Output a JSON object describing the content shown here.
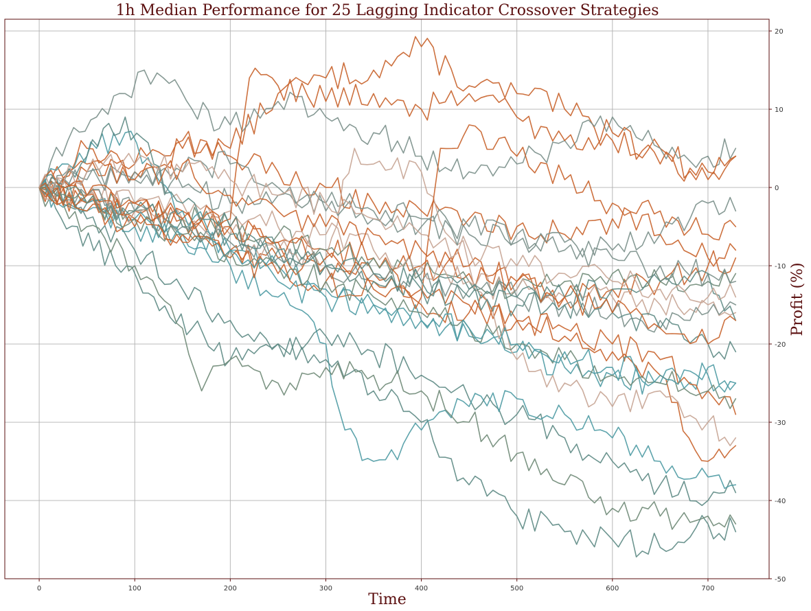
{
  "chart_data": {
    "type": "line",
    "title": "1h Median Performance for 25 Lagging Indicator Crossover Strategies",
    "xlabel": "Time",
    "ylabel": "Profit (%)",
    "xlim": [
      -36,
      764
    ],
    "ylim": [
      -50,
      21.5
    ],
    "xticks": [
      0,
      100,
      200,
      300,
      400,
      500,
      600,
      700
    ],
    "yticks": [
      -50,
      -40,
      -30,
      -20,
      -10,
      0,
      10,
      20
    ],
    "y_axis_side": "right",
    "grid": true,
    "legend": "none",
    "colors": [
      "#c8622a",
      "#5d8a84",
      "#4c9aa3",
      "#7a8f8a",
      "#c7a493",
      "#6f8a77"
    ],
    "series": [
      {
        "color": "#c8622a",
        "x": [
          0,
          50,
          100,
          150,
          200,
          250,
          300,
          350,
          400,
          450,
          500,
          550,
          600,
          650,
          700,
          729
        ],
        "y": [
          0,
          5,
          3,
          6,
          5,
          12,
          14,
          15,
          18,
          13,
          12,
          10,
          6,
          5,
          1,
          4
        ]
      },
      {
        "color": "#7a8f8a",
        "x": [
          0,
          30,
          60,
          90,
          110,
          130,
          160,
          200,
          250,
          300,
          350,
          400,
          450,
          500,
          550,
          600,
          650,
          700,
          729
        ],
        "y": [
          0,
          6,
          9,
          12,
          15,
          14,
          10,
          8,
          11,
          9,
          7,
          4,
          2,
          3,
          6,
          9,
          5,
          4,
          5
        ]
      },
      {
        "color": "#c8622a",
        "x": [
          0,
          50,
          100,
          150,
          200,
          250,
          300,
          350,
          400,
          450,
          500,
          550,
          600,
          650,
          700,
          729
        ],
        "y": [
          0,
          3,
          2,
          5,
          4,
          2,
          0,
          -2,
          -3,
          -4,
          -5,
          -6,
          -4,
          -3,
          -6,
          -5
        ]
      },
      {
        "color": "#7a8f8a",
        "x": [
          0,
          50,
          100,
          150,
          200,
          250,
          300,
          350,
          400,
          450,
          500,
          550,
          600,
          650,
          700,
          729
        ],
        "y": [
          0,
          2,
          1,
          2,
          3,
          0,
          -2,
          -3,
          -4,
          -5,
          -6,
          -7,
          -8,
          -6,
          -2,
          -3
        ]
      },
      {
        "color": "#c8622a",
        "x": [
          0,
          50,
          100,
          150,
          200,
          250,
          300,
          350,
          400,
          450,
          500,
          550,
          600,
          650,
          700,
          729
        ],
        "y": [
          0,
          -1,
          -3,
          -4,
          -5,
          -7,
          -8,
          -9,
          -10,
          -11,
          -12,
          -14,
          -13,
          -12,
          -10,
          -9
        ]
      },
      {
        "color": "#6f8a77",
        "x": [
          0,
          50,
          100,
          150,
          200,
          250,
          300,
          350,
          400,
          450,
          500,
          550,
          600,
          650,
          700,
          729
        ],
        "y": [
          0,
          -2,
          -3,
          -4,
          -5,
          -6,
          -8,
          -9,
          -11,
          -12,
          -13,
          -12,
          -11,
          -12,
          -12,
          -11
        ]
      },
      {
        "color": "#c7a493",
        "x": [
          0,
          50,
          100,
          150,
          200,
          250,
          300,
          350,
          400,
          450,
          500,
          550,
          600,
          650,
          700,
          729
        ],
        "y": [
          0,
          -1,
          -2,
          -2,
          -3,
          -5,
          -6,
          -8,
          -10,
          -12,
          -13,
          -14,
          -14,
          -15,
          -15,
          -16
        ]
      },
      {
        "color": "#4c9aa3",
        "x": [
          0,
          50,
          100,
          150,
          200,
          250,
          300,
          350,
          400,
          450,
          500,
          550,
          600,
          650,
          700,
          729
        ],
        "y": [
          0,
          -2,
          -4,
          -6,
          -8,
          -10,
          -13,
          -15,
          -17,
          -19,
          -21,
          -23,
          -24,
          -25,
          -24,
          -25
        ]
      },
      {
        "color": "#5d8a84",
        "x": [
          0,
          40,
          80,
          120,
          160,
          200,
          250,
          300,
          350,
          400,
          450,
          500,
          550,
          600,
          650,
          700,
          729
        ],
        "y": [
          0,
          -5,
          -10,
          -14,
          -18,
          -22,
          -20,
          -19,
          -21,
          -24,
          -27,
          -29,
          -32,
          -35,
          -38,
          -40,
          -39
        ]
      },
      {
        "color": "#4c9aa3",
        "x": [
          0,
          50,
          100,
          150,
          200,
          250,
          300,
          320,
          350,
          400,
          450,
          500,
          550,
          600,
          650,
          700,
          729
        ],
        "y": [
          0,
          -3,
          -5,
          -7,
          -10,
          -14,
          -20,
          -31,
          -35,
          -31,
          -28,
          -27,
          -29,
          -32,
          -35,
          -37,
          -38
        ]
      },
      {
        "color": "#5d8a84",
        "x": [
          0,
          50,
          100,
          150,
          200,
          250,
          300,
          350,
          400,
          450,
          500,
          550,
          600,
          650,
          700,
          729
        ],
        "y": [
          0,
          -4,
          -8,
          -13,
          -17,
          -20,
          -22,
          -26,
          -30,
          -38,
          -42,
          -44,
          -45,
          -46,
          -43,
          -44
        ]
      },
      {
        "color": "#6f8a77",
        "x": [
          0,
          50,
          100,
          150,
          170,
          200,
          250,
          300,
          350,
          400,
          450,
          500,
          550,
          600,
          650,
          700,
          729
        ],
        "y": [
          0,
          -5,
          -10,
          -18,
          -26,
          -22,
          -25,
          -23,
          -24,
          -26,
          -30,
          -34,
          -38,
          -41,
          -42,
          -42,
          -43
        ]
      },
      {
        "color": "#c8622a",
        "x": [
          0,
          50,
          100,
          150,
          200,
          250,
          300,
          350,
          400,
          450,
          500,
          550,
          600,
          650,
          680,
          700,
          729
        ],
        "y": [
          0,
          -2,
          -4,
          -6,
          -8,
          -9,
          -10,
          -11,
          -13,
          -15,
          -17,
          -19,
          -21,
          -24,
          -32,
          -35,
          -33
        ]
      },
      {
        "color": "#c7a493",
        "x": [
          0,
          50,
          100,
          150,
          200,
          250,
          300,
          330,
          350,
          400,
          450,
          500,
          550,
          600,
          650,
          700,
          729
        ],
        "y": [
          0,
          -1,
          -3,
          -4,
          -6,
          -8,
          -9,
          5,
          3,
          2,
          -10,
          -22,
          -25,
          -28,
          -26,
          -30,
          -32
        ]
      },
      {
        "color": "#c8622a",
        "x": [
          0,
          50,
          100,
          150,
          200,
          250,
          300,
          350,
          400,
          420,
          450,
          500,
          550,
          600,
          650,
          700,
          729
        ],
        "y": [
          0,
          -1,
          -2,
          -3,
          -5,
          -7,
          -9,
          -12,
          -14,
          5,
          8,
          4,
          1,
          -2,
          -6,
          -9,
          -8
        ]
      },
      {
        "color": "#7a8f8a",
        "x": [
          0,
          50,
          100,
          150,
          200,
          250,
          300,
          350,
          400,
          450,
          500,
          550,
          600,
          650,
          700,
          729
        ],
        "y": [
          0,
          -1,
          -3,
          -5,
          -7,
          -9,
          -10,
          -11,
          -12,
          -13,
          -14,
          -15,
          -16,
          -17,
          -16,
          -15
        ]
      },
      {
        "color": "#5d8a84",
        "x": [
          0,
          50,
          100,
          150,
          200,
          250,
          300,
          350,
          400,
          450,
          500,
          550,
          600,
          650,
          700,
          729
        ],
        "y": [
          0,
          -2,
          -3,
          -5,
          -6,
          -8,
          -10,
          -12,
          -13,
          -14,
          -15,
          -15,
          -16,
          -18,
          -20,
          -21
        ]
      },
      {
        "color": "#c8622a",
        "x": [
          0,
          50,
          100,
          150,
          200,
          250,
          300,
          350,
          400,
          450,
          500,
          550,
          600,
          650,
          700,
          729
        ],
        "y": [
          0,
          -3,
          -5,
          -7,
          -9,
          -11,
          -12,
          -13,
          -15,
          -16,
          -17,
          -18,
          -20,
          -22,
          -26,
          -29
        ]
      },
      {
        "color": "#6f8a77",
        "x": [
          0,
          50,
          100,
          150,
          200,
          250,
          300,
          350,
          400,
          450,
          500,
          550,
          600,
          650,
          700,
          729
        ],
        "y": [
          0,
          -2,
          -4,
          -6,
          -8,
          -10,
          -12,
          -14,
          -16,
          -18,
          -20,
          -22,
          -24,
          -25,
          -26,
          -27
        ]
      },
      {
        "color": "#4c9aa3",
        "x": [
          0,
          30,
          60,
          90,
          120,
          150,
          200,
          250,
          300,
          350,
          400,
          450,
          500,
          550,
          600,
          650,
          700,
          729
        ],
        "y": [
          0,
          3,
          5,
          7,
          2,
          -3,
          -8,
          -12,
          -14,
          -15,
          -17,
          -18,
          -20,
          -21,
          -23,
          -24,
          -23,
          -25
        ]
      },
      {
        "color": "#7a8f8a",
        "x": [
          0,
          50,
          100,
          150,
          200,
          250,
          300,
          350,
          400,
          450,
          500,
          550,
          600,
          650,
          700,
          729
        ],
        "y": [
          0,
          1,
          2,
          0,
          -2,
          -1,
          -3,
          -4,
          -5,
          -6,
          -7,
          -8,
          -9,
          -10,
          -11,
          -12
        ]
      },
      {
        "color": "#c8622a",
        "x": [
          0,
          50,
          100,
          150,
          200,
          220,
          250,
          300,
          350,
          400,
          450,
          500,
          550,
          600,
          650,
          700,
          729
        ],
        "y": [
          0,
          -1,
          -2,
          -4,
          -4,
          14,
          13,
          11,
          12,
          10,
          12,
          9,
          6,
          7,
          3,
          2,
          4
        ]
      },
      {
        "color": "#5d8a84",
        "x": [
          0,
          50,
          90,
          120,
          150,
          200,
          250,
          300,
          350,
          400,
          450,
          500,
          550,
          600,
          650,
          700,
          729
        ],
        "y": [
          0,
          4,
          9,
          3,
          -2,
          -5,
          -8,
          -10,
          -11,
          -12,
          -13,
          -14,
          -14,
          -13,
          -12,
          -11,
          -17
        ]
      },
      {
        "color": "#c8622a",
        "x": [
          0,
          50,
          100,
          150,
          200,
          250,
          300,
          350,
          400,
          450,
          500,
          550,
          600,
          650,
          700,
          729
        ],
        "y": [
          0,
          2,
          1,
          3,
          -1,
          -3,
          -5,
          -6,
          -8,
          -10,
          -12,
          -14,
          -16,
          -18,
          -20,
          -17
        ]
      },
      {
        "color": "#c7a493",
        "x": [
          0,
          50,
          100,
          150,
          200,
          250,
          300,
          350,
          400,
          450,
          500,
          550,
          600,
          650,
          700,
          729
        ],
        "y": [
          0,
          2,
          3,
          2,
          1,
          -1,
          -2,
          -4,
          -6,
          -8,
          -10,
          -11,
          -12,
          -13,
          -14,
          -14
        ]
      }
    ]
  }
}
